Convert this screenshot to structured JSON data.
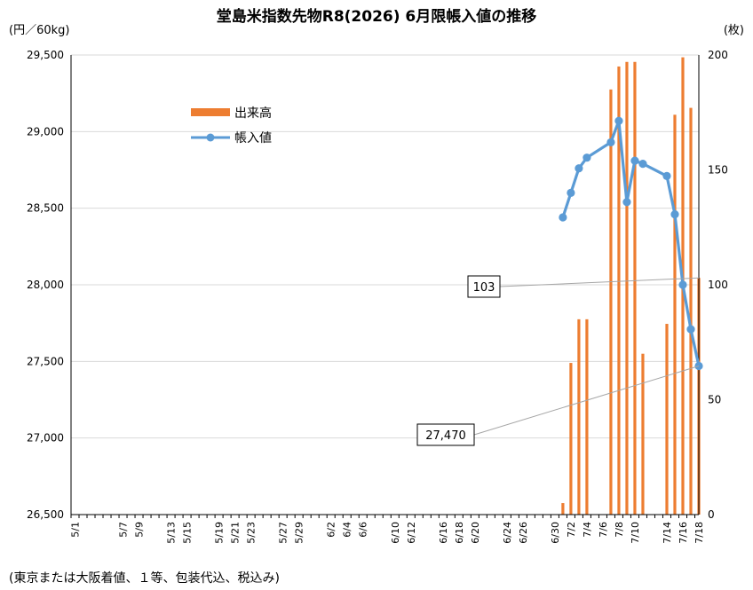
{
  "chart_data": {
    "type": "bar+line",
    "title": "堂島米指数先物R8(2026) 6月限帳入値の推移",
    "y_left_unit": "(円／60kg)",
    "y_right_unit": "(枚)",
    "note": "(東京または大阪着値、１等、包装代込、税込み)",
    "y_left_ticks": [
      "29,500",
      "29,000",
      "28,500",
      "28,000",
      "27,500",
      "27,000",
      "26,500"
    ],
    "y_right_ticks": [
      "200",
      "150",
      "100",
      "50",
      "0"
    ],
    "ylim_left": [
      26500,
      29500
    ],
    "ylim_right": [
      0,
      200
    ],
    "x_tick_labels": [
      "5/1",
      "5/7",
      "5/9",
      "5/13",
      "5/15",
      "5/19",
      "5/21",
      "5/23",
      "5/27",
      "5/29",
      "6/2",
      "6/4",
      "6/6",
      "6/10",
      "6/12",
      "6/16",
      "6/18",
      "6/20",
      "6/24",
      "6/26",
      "6/30",
      "7/2",
      "7/4",
      "7/6",
      "7/8",
      "7/10",
      "7/14",
      "7/16",
      "7/18"
    ],
    "legend": {
      "bar": "出来高",
      "line": "帳入値"
    },
    "colors": {
      "bar": "#ed7d31",
      "line": "#5b9bd5",
      "grid": "#d9d9d9"
    },
    "series": [
      {
        "name": "出来高",
        "axis": "right",
        "data": [
          {
            "date": "7/1",
            "value": 5
          },
          {
            "date": "7/2",
            "value": 66
          },
          {
            "date": "7/3",
            "value": 85
          },
          {
            "date": "7/4",
            "value": 85
          },
          {
            "date": "7/7",
            "value": 185
          },
          {
            "date": "7/8",
            "value": 195
          },
          {
            "date": "7/9",
            "value": 197
          },
          {
            "date": "7/10",
            "value": 197
          },
          {
            "date": "7/11",
            "value": 70
          },
          {
            "date": "7/14",
            "value": 83
          },
          {
            "date": "7/15",
            "value": 174
          },
          {
            "date": "7/16",
            "value": 199
          },
          {
            "date": "7/17",
            "value": 177
          },
          {
            "date": "7/18",
            "value": 103
          }
        ]
      },
      {
        "name": "帳入値",
        "axis": "left",
        "data": [
          {
            "date": "7/1",
            "value": 28440
          },
          {
            "date": "7/2",
            "value": 28600
          },
          {
            "date": "7/3",
            "value": 28760
          },
          {
            "date": "7/4",
            "value": 28830
          },
          {
            "date": "7/7",
            "value": 28930
          },
          {
            "date": "7/8",
            "value": 29070
          },
          {
            "date": "7/9",
            "value": 28540
          },
          {
            "date": "7/10",
            "value": 28810
          },
          {
            "date": "7/11",
            "value": 28790
          },
          {
            "date": "7/14",
            "value": 28710
          },
          {
            "date": "7/15",
            "value": 28460
          },
          {
            "date": "7/16",
            "value": 28000
          },
          {
            "date": "7/17",
            "value": 27710
          },
          {
            "date": "7/18",
            "value": 27470
          }
        ]
      }
    ],
    "callouts": [
      {
        "text": "103",
        "series": "出来高",
        "date": "7/18"
      },
      {
        "text": "27,470",
        "series": "帳入値",
        "date": "7/18"
      }
    ]
  }
}
